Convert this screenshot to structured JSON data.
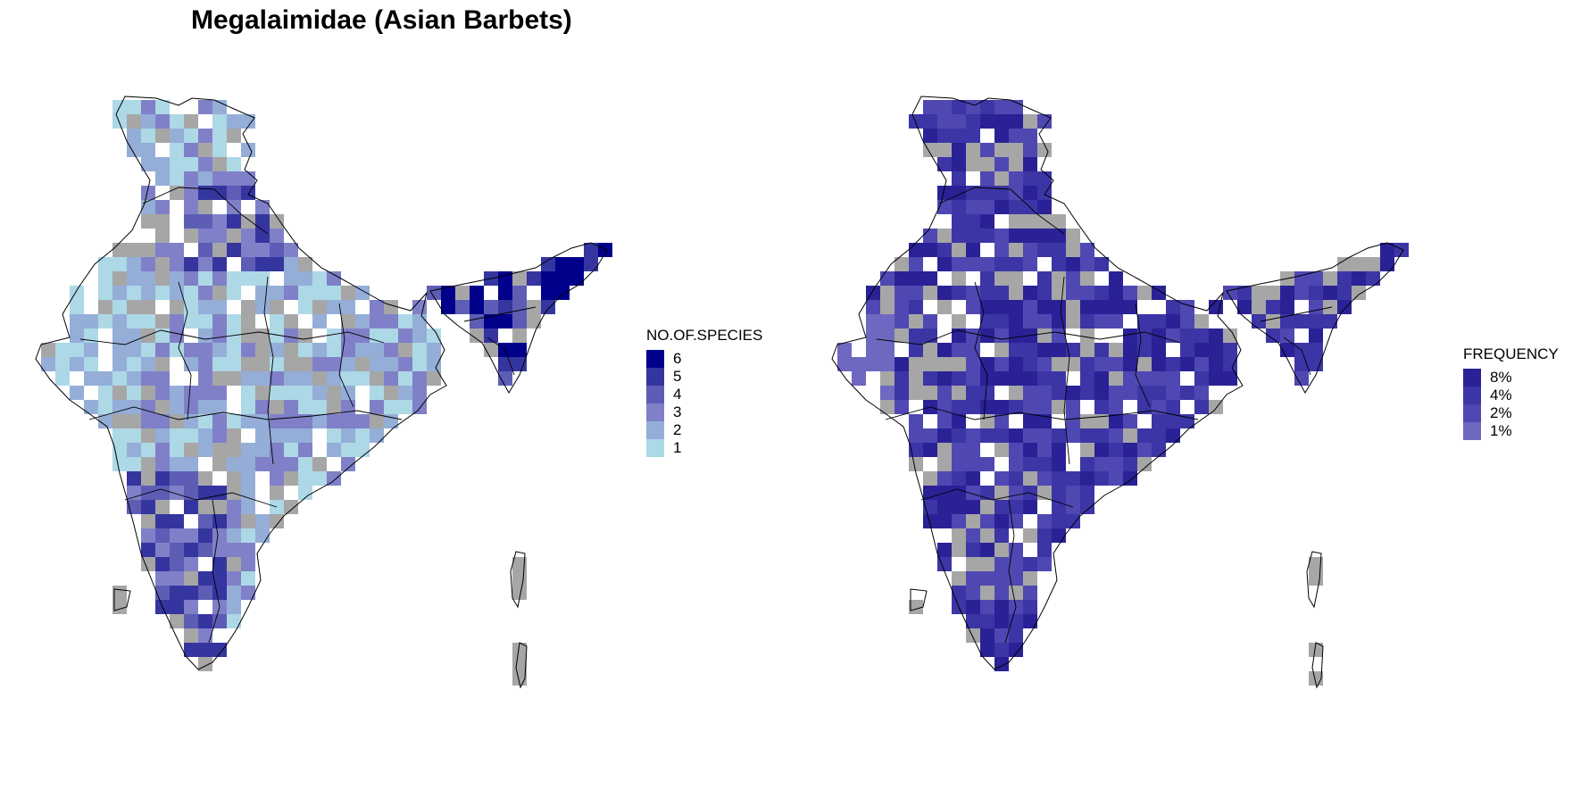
{
  "title": "Megalaimidae (Asian Barbets)",
  "colors": {
    "no_data": "#a6a6a6",
    "outline": "#000000"
  },
  "left_map": {
    "legend_title": "NO.OF.SPECIES",
    "legend_items": [
      {
        "label": "6",
        "color": "#00008b",
        "value": 6
      },
      {
        "label": "5",
        "color": "#3535a0",
        "value": 5
      },
      {
        "label": "4",
        "color": "#5d5db6",
        "value": 4
      },
      {
        "label": "3",
        "color": "#8080c8",
        "value": 3
      },
      {
        "label": "2",
        "color": "#94aed8",
        "value": 2
      },
      {
        "label": "1",
        "color": "#add8e6",
        "value": 1
      }
    ]
  },
  "right_map": {
    "legend_title": "FREQUENCY",
    "legend_items": [
      {
        "label": "8%",
        "color": "#2a2196",
        "value": 8
      },
      {
        "label": "4%",
        "color": "#3c35a6",
        "value": 4
      },
      {
        "label": "2%",
        "color": "#5048b2",
        "value": 2
      },
      {
        "label": "1%",
        "color": "#6e68c0",
        "value": 1
      }
    ]
  }
}
